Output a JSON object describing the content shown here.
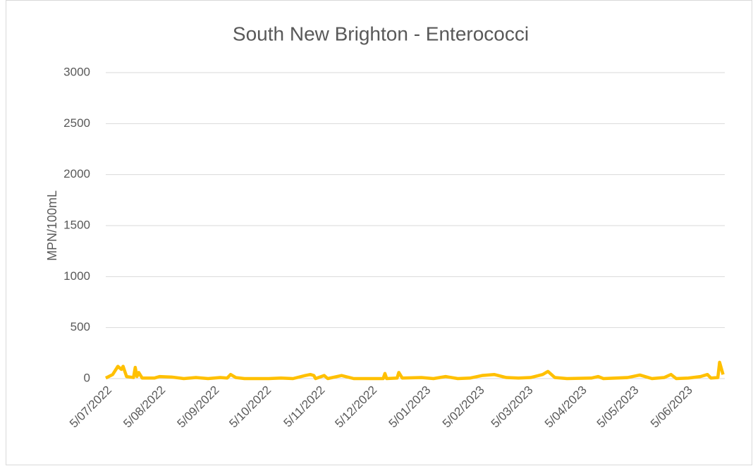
{
  "chart_data": {
    "type": "line",
    "title": "South New Brighton - Enterococci",
    "y_label": "MPN/100mL",
    "x": [
      "2022-07-05",
      "2022-07-09",
      "2022-07-12",
      "2022-07-14",
      "2022-07-15",
      "2022-07-17",
      "2022-07-21",
      "2022-07-22",
      "2022-07-23",
      "2022-07-24",
      "2022-07-26",
      "2022-08-02",
      "2022-08-05",
      "2022-08-12",
      "2022-08-19",
      "2022-08-26",
      "2022-09-02",
      "2022-09-09",
      "2022-09-13",
      "2022-09-15",
      "2022-09-18",
      "2022-09-23",
      "2022-10-07",
      "2022-10-14",
      "2022-10-21",
      "2022-10-28",
      "2022-10-31",
      "2022-11-02",
      "2022-11-03",
      "2022-11-08",
      "2022-11-10",
      "2022-11-18",
      "2022-11-25",
      "2022-12-12",
      "2022-12-13",
      "2022-12-14",
      "2022-12-20",
      "2022-12-21",
      "2022-12-23",
      "2023-01-03",
      "2023-01-10",
      "2023-01-17",
      "2023-01-24",
      "2023-01-31",
      "2023-02-07",
      "2023-02-14",
      "2023-02-21",
      "2023-02-28",
      "2023-03-07",
      "2023-03-14",
      "2023-03-17",
      "2023-03-21",
      "2023-03-28",
      "2023-04-11",
      "2023-04-15",
      "2023-04-18",
      "2023-05-02",
      "2023-05-09",
      "2023-05-16",
      "2023-05-23",
      "2023-05-27",
      "2023-05-30",
      "2023-06-06",
      "2023-06-13",
      "2023-06-17",
      "2023-06-19",
      "2023-06-23",
      "2023-06-24",
      "2023-06-26"
    ],
    "values": [
      5,
      40,
      120,
      90,
      120,
      20,
      10,
      110,
      20,
      60,
      5,
      5,
      20,
      15,
      0,
      10,
      0,
      10,
      5,
      40,
      10,
      0,
      0,
      5,
      0,
      30,
      40,
      30,
      0,
      30,
      0,
      30,
      0,
      0,
      50,
      0,
      5,
      60,
      5,
      10,
      0,
      20,
      0,
      5,
      30,
      40,
      10,
      5,
      10,
      40,
      70,
      10,
      0,
      5,
      20,
      0,
      10,
      35,
      0,
      10,
      40,
      0,
      5,
      20,
      40,
      5,
      10,
      160,
      40
    ],
    "color": "#ffc000",
    "xlim": [
      "2022-07-05",
      "2023-06-27"
    ],
    "xticks": [
      {
        "value": "2022-07-05",
        "label": "5/07/2022"
      },
      {
        "value": "2022-08-05",
        "label": "5/08/2022"
      },
      {
        "value": "2022-09-05",
        "label": "5/09/2022"
      },
      {
        "value": "2022-10-05",
        "label": "5/10/2022"
      },
      {
        "value": "2022-11-05",
        "label": "5/11/2022"
      },
      {
        "value": "2022-12-05",
        "label": "5/12/2022"
      },
      {
        "value": "2023-01-05",
        "label": "5/01/2023"
      },
      {
        "value": "2023-02-05",
        "label": "5/02/2023"
      },
      {
        "value": "2023-03-05",
        "label": "5/03/2023"
      },
      {
        "value": "2023-04-05",
        "label": "5/04/2023"
      },
      {
        "value": "2023-05-05",
        "label": "5/05/2023"
      },
      {
        "value": "2023-06-05",
        "label": "5/06/2023"
      }
    ],
    "ylim": [
      0,
      3000
    ],
    "yticks": [
      0,
      500,
      1000,
      1500,
      2000,
      2500,
      3000
    ],
    "grid": true
  }
}
